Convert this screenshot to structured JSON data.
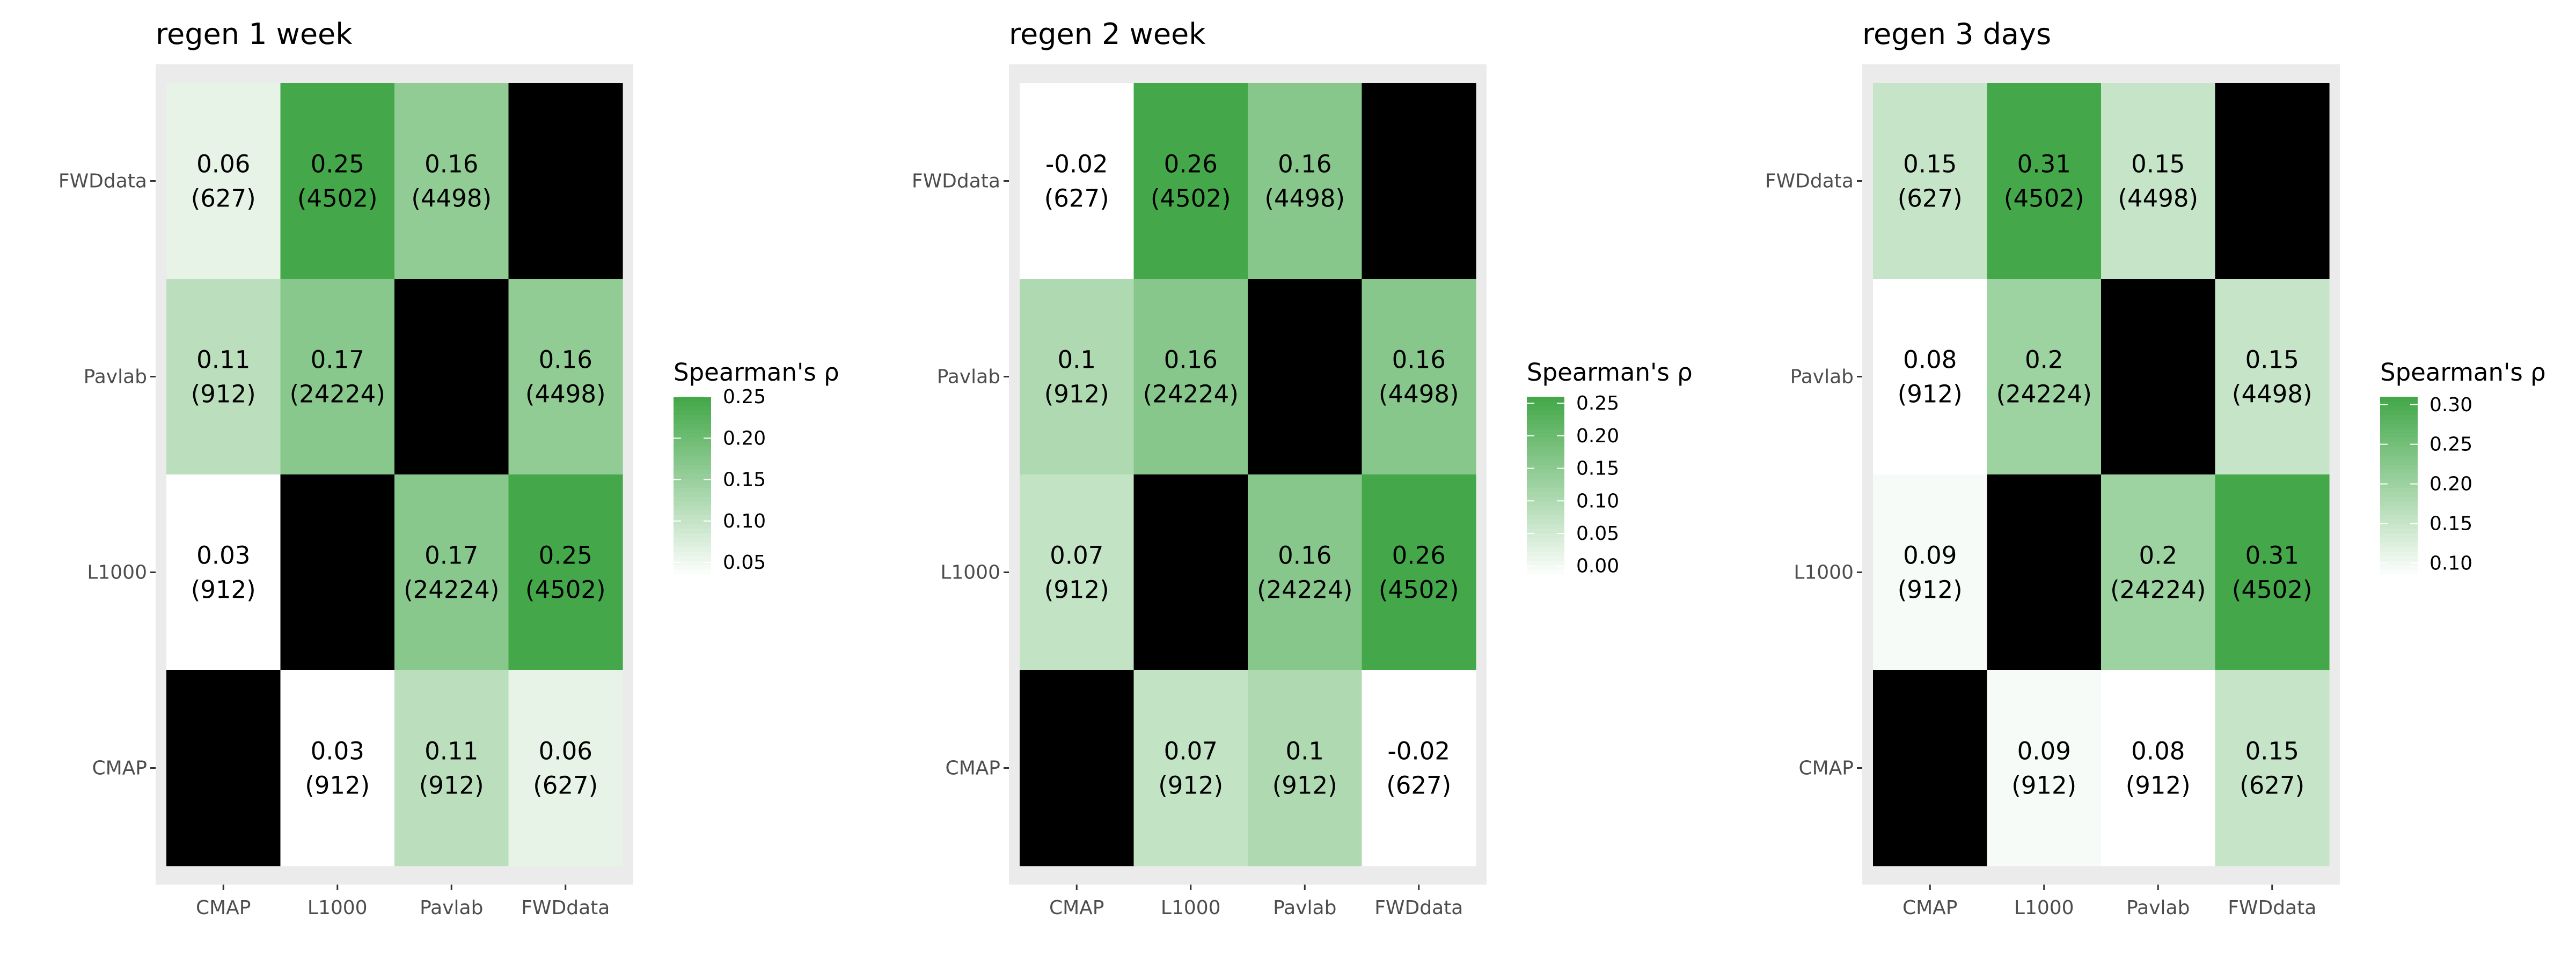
{
  "chart_data": [
    {
      "type": "heatmap",
      "title": "regen 1 week",
      "x_categories": [
        "CMAP",
        "L1000",
        "Pavlab",
        "FWDdata"
      ],
      "y_categories": [
        "FWDdata",
        "Pavlab",
        "L1000",
        "CMAP"
      ],
      "cells": [
        [
          0.06,
          0.25,
          0.16,
          null
        ],
        [
          0.11,
          0.17,
          null,
          0.16
        ],
        [
          0.03,
          null,
          0.17,
          0.25
        ],
        [
          null,
          0.03,
          0.11,
          0.06
        ]
      ],
      "cell_labels": [
        [
          [
            "0.06",
            "(627)"
          ],
          [
            "0.25",
            "(4502)"
          ],
          [
            "0.16",
            "(4498)"
          ],
          null
        ],
        [
          [
            "0.11",
            "(912)"
          ],
          [
            "0.17",
            "(24224)"
          ],
          null,
          [
            "0.16",
            "(4498)"
          ]
        ],
        [
          [
            "0.03",
            "(912)"
          ],
          null,
          [
            "0.17",
            "(24224)"
          ],
          [
            "0.25",
            "(4502)"
          ]
        ],
        [
          null,
          [
            "0.03",
            "(912)"
          ],
          [
            "0.11",
            "(912)"
          ],
          [
            "0.06",
            "(627)"
          ]
        ]
      ],
      "legend": {
        "title": "Spearman's ρ",
        "range": [
          0.03,
          0.25
        ],
        "ticks": [
          0.05,
          0.1,
          0.15,
          0.2,
          0.25
        ],
        "tick_labels": [
          "0.05",
          "0.10",
          "0.15",
          "0.20",
          "0.25"
        ],
        "colors": [
          "#ffffff",
          "#44a84a"
        ],
        "missing_color": "#000000"
      }
    },
    {
      "type": "heatmap",
      "title": "regen 2 week",
      "x_categories": [
        "CMAP",
        "L1000",
        "Pavlab",
        "FWDdata"
      ],
      "y_categories": [
        "FWDdata",
        "Pavlab",
        "L1000",
        "CMAP"
      ],
      "cells": [
        [
          -0.02,
          0.26,
          0.16,
          null
        ],
        [
          0.1,
          0.16,
          null,
          0.16
        ],
        [
          0.07,
          null,
          0.16,
          0.26
        ],
        [
          null,
          0.07,
          0.1,
          -0.02
        ]
      ],
      "cell_labels": [
        [
          [
            "-0.02",
            "(627)"
          ],
          [
            "0.26",
            "(4502)"
          ],
          [
            "0.16",
            "(4498)"
          ],
          null
        ],
        [
          [
            "0.1",
            "(912)"
          ],
          [
            "0.16",
            "(24224)"
          ],
          null,
          [
            "0.16",
            "(4498)"
          ]
        ],
        [
          [
            "0.07",
            "(912)"
          ],
          null,
          [
            "0.16",
            "(24224)"
          ],
          [
            "0.26",
            "(4502)"
          ]
        ],
        [
          null,
          [
            "0.07",
            "(912)"
          ],
          [
            "0.1",
            "(912)"
          ],
          [
            "-0.02",
            "(627)"
          ]
        ]
      ],
      "legend": {
        "title": "Spearman's ρ",
        "range": [
          -0.02,
          0.26
        ],
        "ticks": [
          0.0,
          0.05,
          0.1,
          0.15,
          0.2,
          0.25
        ],
        "tick_labels": [
          "0.00",
          "0.05",
          "0.10",
          "0.15",
          "0.20",
          "0.25"
        ],
        "colors": [
          "#ffffff",
          "#44a84a"
        ],
        "missing_color": "#000000"
      }
    },
    {
      "type": "heatmap",
      "title": "regen 3 days",
      "x_categories": [
        "CMAP",
        "L1000",
        "Pavlab",
        "FWDdata"
      ],
      "y_categories": [
        "FWDdata",
        "Pavlab",
        "L1000",
        "CMAP"
      ],
      "cells": [
        [
          0.15,
          0.31,
          0.15,
          null
        ],
        [
          0.08,
          0.2,
          null,
          0.15
        ],
        [
          0.09,
          null,
          0.2,
          0.31
        ],
        [
          null,
          0.09,
          0.08,
          0.15
        ]
      ],
      "cell_labels": [
        [
          [
            "0.15",
            "(627)"
          ],
          [
            "0.31",
            "(4502)"
          ],
          [
            "0.15",
            "(4498)"
          ],
          null
        ],
        [
          [
            "0.08",
            "(912)"
          ],
          [
            "0.2",
            "(24224)"
          ],
          null,
          [
            "0.15",
            "(4498)"
          ]
        ],
        [
          [
            "0.09",
            "(912)"
          ],
          null,
          [
            "0.2",
            "(24224)"
          ],
          [
            "0.31",
            "(4502)"
          ]
        ],
        [
          null,
          [
            "0.09",
            "(912)"
          ],
          [
            "0.08",
            "(912)"
          ],
          [
            "0.15",
            "(627)"
          ]
        ]
      ],
      "legend": {
        "title": "Spearman's ρ",
        "range": [
          0.08,
          0.31
        ],
        "ticks": [
          0.1,
          0.15,
          0.2,
          0.25,
          0.3
        ],
        "tick_labels": [
          "0.10",
          "0.15",
          "0.20",
          "0.25",
          "0.30"
        ],
        "colors": [
          "#ffffff",
          "#44a84a"
        ],
        "missing_color": "#000000"
      }
    }
  ]
}
